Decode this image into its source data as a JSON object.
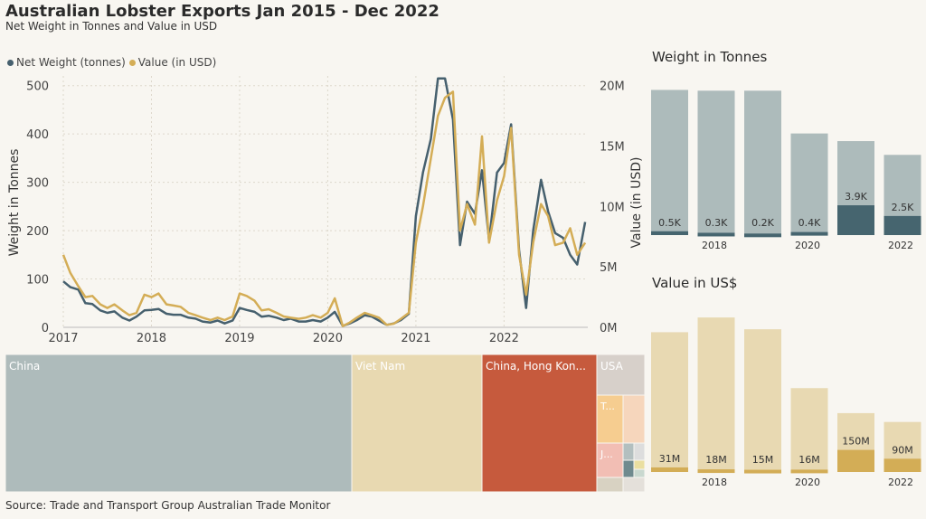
{
  "header": {
    "title": "Australian Lobster Exports Jan 2015 - Dec 2022",
    "subtitle": "Net Weight in Tonnes and Value in USD"
  },
  "source": "Source: Trade and Transport Group Australian Trade Monitor",
  "colors": {
    "weight_line": "#46606e",
    "value_line": "#d4ad56",
    "bar_grey": "#adbbbb",
    "bar_dark": "#46656f",
    "bar_cream": "#e8d9b2",
    "bar_gold": "#d3ad56",
    "china": "#aebbbb",
    "vietnam": "#e8d9b1",
    "hongkong": "#c65a3d",
    "usa": "#d7d0ca"
  },
  "chart_data": [
    {
      "type": "line",
      "legend": [
        "Net Weight (tonnes)",
        "Value (in USD)"
      ],
      "legend_position": "top-left",
      "ylabel": "Weight in Tonnes",
      "y2label": "Value (in USD)",
      "x_ticks": [
        "2017",
        "2018",
        "2019",
        "2020",
        "2021",
        "2022"
      ],
      "y_ticks": [
        "0",
        "100",
        "200",
        "300",
        "400",
        "500"
      ],
      "y2_ticks": [
        "0M",
        "5M",
        "10M",
        "15M",
        "20M"
      ],
      "ylim": [
        0,
        520
      ],
      "y2lim": [
        0,
        20800000
      ],
      "xlim": [
        2017.0,
        2022.95
      ],
      "grid": true,
      "series": [
        {
          "name": "Net Weight (tonnes)",
          "x": [
            2017.0,
            2017.08,
            2017.17,
            2017.25,
            2017.33,
            2017.42,
            2017.5,
            2017.58,
            2017.67,
            2017.75,
            2017.83,
            2017.92,
            2018.0,
            2018.08,
            2018.17,
            2018.25,
            2018.33,
            2018.42,
            2018.5,
            2018.58,
            2018.67,
            2018.75,
            2018.83,
            2018.92,
            2019.0,
            2019.08,
            2019.17,
            2019.25,
            2019.33,
            2019.42,
            2019.5,
            2019.58,
            2019.67,
            2019.75,
            2019.83,
            2019.92,
            2020.0,
            2020.08,
            2020.17,
            2020.25,
            2020.33,
            2020.42,
            2020.5,
            2020.58,
            2020.67,
            2020.75,
            2020.83,
            2020.92,
            2021.0,
            2021.08,
            2021.17,
            2021.25,
            2021.33,
            2021.42,
            2021.5,
            2021.58,
            2021.67,
            2021.75,
            2021.83,
            2021.92,
            2022.0,
            2022.08,
            2022.17,
            2022.25,
            2022.33,
            2022.42,
            2022.5,
            2022.58,
            2022.67,
            2022.75,
            2022.83,
            2022.92
          ],
          "values": [
            95,
            83,
            78,
            50,
            48,
            35,
            30,
            33,
            20,
            14,
            22,
            35,
            36,
            38,
            28,
            26,
            26,
            20,
            18,
            12,
            10,
            14,
            8,
            14,
            40,
            36,
            32,
            22,
            24,
            20,
            15,
            18,
            12,
            12,
            15,
            12,
            20,
            32,
            3,
            8,
            15,
            25,
            22,
            14,
            5,
            8,
            15,
            28,
            230,
            320,
            390,
            515,
            515,
            430,
            170,
            260,
            235,
            325,
            180,
            320,
            340,
            420,
            160,
            40,
            200,
            305,
            240,
            195,
            185,
            150,
            130,
            218
          ]
        },
        {
          "name": "Value (in USD)",
          "x": [
            2017.0,
            2017.08,
            2017.17,
            2017.25,
            2017.33,
            2017.42,
            2017.5,
            2017.58,
            2017.67,
            2017.75,
            2017.83,
            2017.92,
            2018.0,
            2018.08,
            2018.17,
            2018.25,
            2018.33,
            2018.42,
            2018.5,
            2018.58,
            2018.67,
            2018.75,
            2018.83,
            2018.92,
            2019.0,
            2019.08,
            2019.17,
            2019.25,
            2019.33,
            2019.42,
            2019.5,
            2019.58,
            2019.67,
            2019.75,
            2019.83,
            2019.92,
            2020.0,
            2020.08,
            2020.17,
            2020.25,
            2020.33,
            2020.42,
            2020.5,
            2020.58,
            2020.67,
            2020.75,
            2020.83,
            2020.92,
            2021.0,
            2021.08,
            2021.17,
            2021.25,
            2021.33,
            2021.42,
            2021.5,
            2021.58,
            2021.67,
            2021.75,
            2021.83,
            2021.92,
            2022.0,
            2022.08,
            2022.17,
            2022.25,
            2022.33,
            2022.42,
            2022.5,
            2022.58,
            2022.67,
            2022.75,
            2022.83,
            2022.92
          ],
          "values": [
            6000000,
            4500000,
            3400000,
            2500000,
            2600000,
            1900000,
            1600000,
            1900000,
            1400000,
            1000000,
            1200000,
            2700000,
            2500000,
            2800000,
            1900000,
            1800000,
            1700000,
            1200000,
            1000000,
            800000,
            600000,
            800000,
            600000,
            900000,
            2800000,
            2600000,
            2200000,
            1400000,
            1500000,
            1200000,
            900000,
            800000,
            700000,
            800000,
            1000000,
            800000,
            1200000,
            2400000,
            100000,
            400000,
            800000,
            1200000,
            1000000,
            800000,
            200000,
            300000,
            700000,
            1200000,
            7000000,
            10000000,
            14000000,
            17500000,
            19000000,
            19500000,
            8000000,
            10200000,
            8500000,
            15800000,
            7000000,
            10500000,
            12500000,
            16500000,
            6000000,
            2700000,
            7000000,
            10200000,
            9200000,
            6800000,
            7000000,
            8200000,
            6000000,
            7000000
          ]
        }
      ]
    },
    {
      "type": "bar",
      "title": "Weight in Tonnes",
      "x_ticks": [
        "2018",
        "2020",
        "2022"
      ],
      "categories": [
        "2017",
        "2018",
        "2019",
        "2020",
        "2021",
        "2022"
      ],
      "series": [
        {
          "values": [
            19,
            18.9,
            18.9,
            13.3,
            12.3,
            10.5
          ]
        },
        {
          "values": [
            0.5,
            0.3,
            0.2,
            0.4,
            3.9,
            2.5
          ]
        }
      ],
      "data_labels": [
        "0.5K",
        "0.3K",
        "0.2K",
        "0.4K",
        "3.9K",
        "2.5K"
      ],
      "ylim": [
        0,
        20
      ]
    },
    {
      "type": "bar",
      "title": "Value in US$",
      "x_ticks": [
        "2018",
        "2020",
        "2022"
      ],
      "categories": [
        "2017",
        "2018",
        "2019",
        "2020",
        "2021",
        "2022"
      ],
      "series": [
        {
          "values": [
            950,
            1050,
            970,
            570,
            400,
            340
          ]
        },
        {
          "values": [
            31,
            18,
            15,
            16,
            150,
            90
          ]
        }
      ],
      "data_labels": [
        "31M",
        "18M",
        "15M",
        "16M",
        "150M",
        "90M"
      ],
      "ylim": [
        0,
        1100
      ]
    },
    {
      "type": "heatmap",
      "labels": [
        "China",
        "Viet Nam",
        "China, Hong Kon...",
        "USA",
        "T...",
        "J..."
      ],
      "values": [
        52.5,
        20,
        17.5,
        3.7,
        2.5,
        1.8
      ]
    }
  ]
}
